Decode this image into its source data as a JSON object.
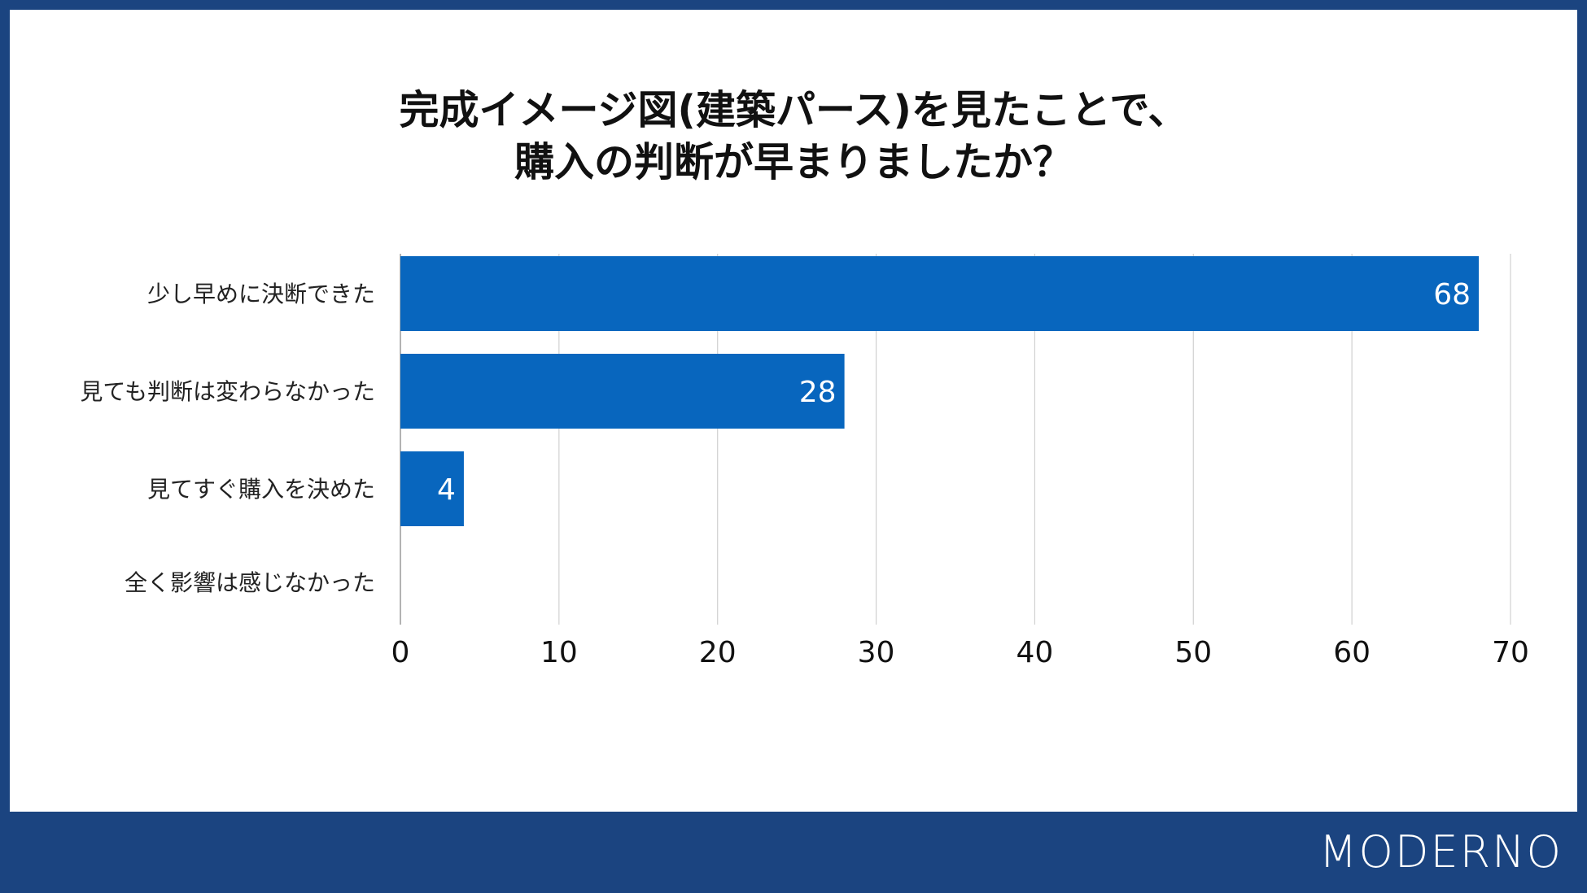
{
  "colors": {
    "frame": "#1b4480",
    "bar": "#0866be",
    "grid": "#d0d0d0"
  },
  "logo": "MODERNO",
  "chart_data": {
    "type": "bar",
    "orientation": "horizontal",
    "title_lines": [
      "完成イメージ図(建築パース)を見たことで、",
      "購入の判断が早まりましたか？"
    ],
    "categories": [
      "少し早めに決断できた",
      "見ても判断は変わらなかった",
      "見てすぐ購入を決めた",
      "全く影響は感じなかった"
    ],
    "values": [
      68,
      28,
      4,
      0
    ],
    "data_labels": [
      "68",
      "28",
      "4",
      ""
    ],
    "xlim": [
      0,
      70
    ],
    "ticks": [
      0,
      10,
      20,
      30,
      40,
      50,
      60,
      70
    ],
    "grid": true,
    "legend": "none"
  }
}
